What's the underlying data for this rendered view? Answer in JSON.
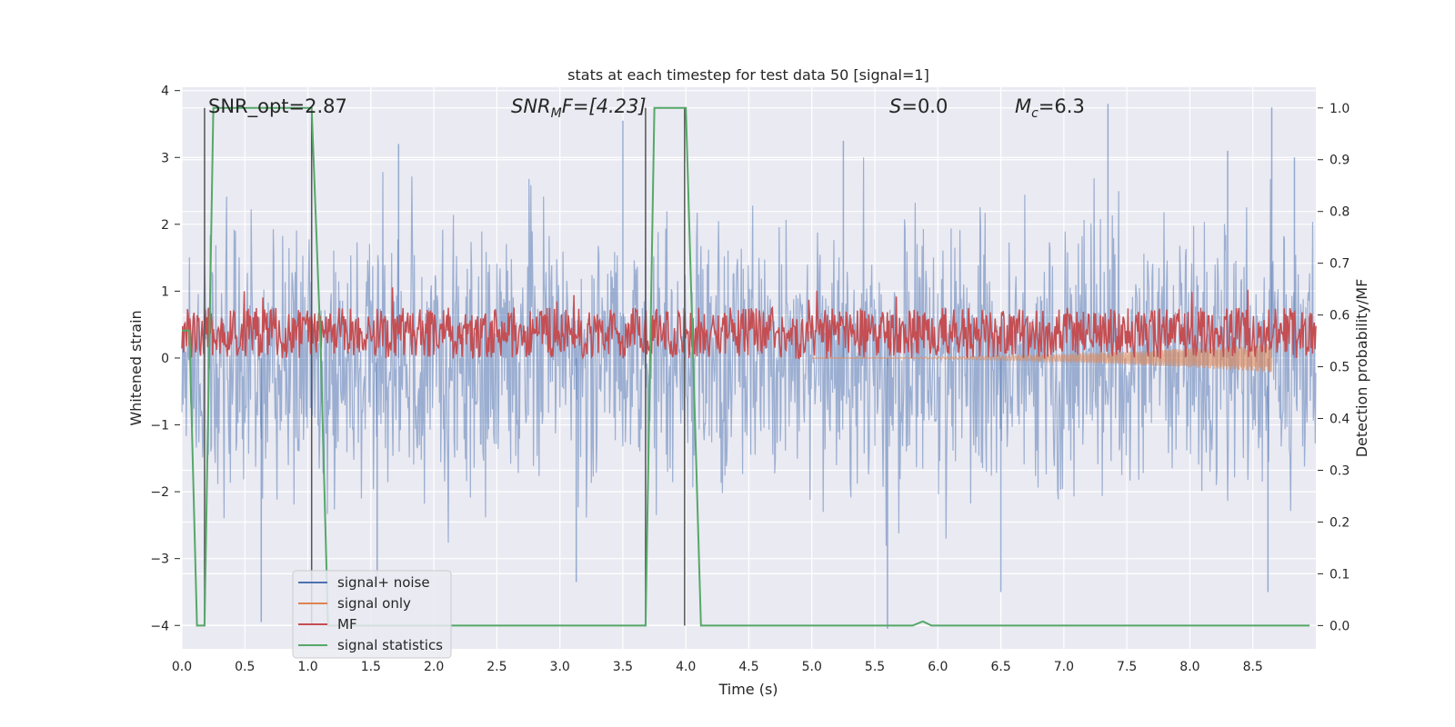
{
  "chart_data": {
    "type": "line",
    "title": "stats at each timestep for test data 50 [signal=1]",
    "xlabel": "Time (s)",
    "ylabel": "Whitened strain",
    "ylabel_right": "Detection probability/MF",
    "xlim": [
      0.0,
      9.0
    ],
    "ylim_left": [
      -4.35,
      4.05
    ],
    "ylim_right": [
      -0.045,
      1.04
    ],
    "x_ticks": [
      0.0,
      0.5,
      1.0,
      1.5,
      2.0,
      2.5,
      3.0,
      3.5,
      4.0,
      4.5,
      5.0,
      5.5,
      6.0,
      6.5,
      7.0,
      7.5,
      8.0,
      8.5
    ],
    "x_tick_labels": [
      "0.0",
      "0.5",
      "1.0",
      "1.5",
      "2.0",
      "2.5",
      "3.0",
      "3.5",
      "4.0",
      "4.5",
      "5.0",
      "5.5",
      "6.0",
      "6.5",
      "7.0",
      "7.5",
      "8.0",
      "8.5"
    ],
    "y_ticks_left": [
      -4,
      -3,
      -2,
      -1,
      0,
      1,
      2,
      3,
      4
    ],
    "y_tick_labels_left": [
      "−4",
      "−3",
      "−2",
      "−1",
      "0",
      "1",
      "2",
      "3",
      "4"
    ],
    "y_ticks_right": [
      0.0,
      0.1,
      0.2,
      0.3,
      0.4,
      0.5,
      0.6,
      0.7,
      0.8,
      0.9,
      1.0
    ],
    "y_tick_labels_right": [
      "0.0",
      "0.1",
      "0.2",
      "0.3",
      "0.4",
      "0.5",
      "0.6",
      "0.7",
      "0.8",
      "0.9",
      "1.0"
    ],
    "grid": true,
    "legend_position": "lower-left",
    "annotations": {
      "snr_opt": "SNR_opt=2.87",
      "snr_mf_name": "SNR",
      "snr_mf_sub": "M",
      "snr_mf_rest": "F=[4.23]",
      "s_name": "S",
      "s_value": "=0.0",
      "mc_name": "M",
      "mc_sub": "c",
      "mc_value": "=6.3"
    },
    "series": [
      {
        "name": "signal+ noise",
        "color": "#4c72b0",
        "axis": "left",
        "kind": "noise",
        "band_approx": [
          -2.4,
          2.4
        ],
        "x_range": [
          0.0,
          9.0
        ],
        "peaks": [
          [
            1.03,
            3.35
          ],
          [
            1.72,
            3.2
          ],
          [
            3.5,
            3.55
          ],
          [
            5.25,
            3.25
          ],
          [
            5.6,
            -4.05
          ],
          [
            6.5,
            -3.5
          ],
          [
            7.35,
            3.8
          ],
          [
            8.3,
            3.1
          ],
          [
            8.65,
            3.75
          ],
          [
            8.83,
            3.0
          ],
          [
            0.63,
            -3.95
          ],
          [
            1.55,
            -3.4
          ],
          [
            3.13,
            -3.35
          ],
          [
            8.62,
            -3.5
          ]
        ]
      },
      {
        "name": "signal only",
        "color": "#dd8452",
        "axis": "left",
        "kind": "chirp",
        "x_range": [
          5.0,
          8.65
        ],
        "amplitude_end": 0.22
      },
      {
        "name": "MF",
        "color": "#c44e52",
        "axis": "right",
        "kind": "mf",
        "band_approx": [
          0.52,
          0.61
        ],
        "x_range": [
          0.0,
          9.0
        ]
      },
      {
        "name": "signal statistics",
        "color": "#55a868",
        "axis": "right",
        "kind": "line",
        "x": [
          0.0,
          0.06,
          0.12,
          0.18,
          0.25,
          1.03,
          1.1,
          1.16,
          2.5,
          3.68,
          3.75,
          4.0,
          4.12,
          5.8,
          5.88,
          5.95,
          8.95
        ],
        "y": [
          0.57,
          0.57,
          0.0,
          0.0,
          1.0,
          1.0,
          0.55,
          0.0,
          0.0,
          0.0,
          1.0,
          1.0,
          0.0,
          0.0,
          0.008,
          0.0,
          0.0
        ]
      }
    ],
    "vertical_markers": [
      {
        "x": 0.18,
        "y_top": 1.0,
        "y_bottom": 0.0
      },
      {
        "x": 1.03,
        "y_top": 1.0,
        "y_bottom": 0.0
      },
      {
        "x": 3.68,
        "y_top": 1.0,
        "y_bottom": 0.0
      },
      {
        "x": 3.99,
        "y_top": 1.0,
        "y_bottom": 0.0
      }
    ],
    "colors": {
      "plot_background": "#eaeaf2",
      "grid": "#ffffff",
      "marker": "#555555"
    }
  }
}
